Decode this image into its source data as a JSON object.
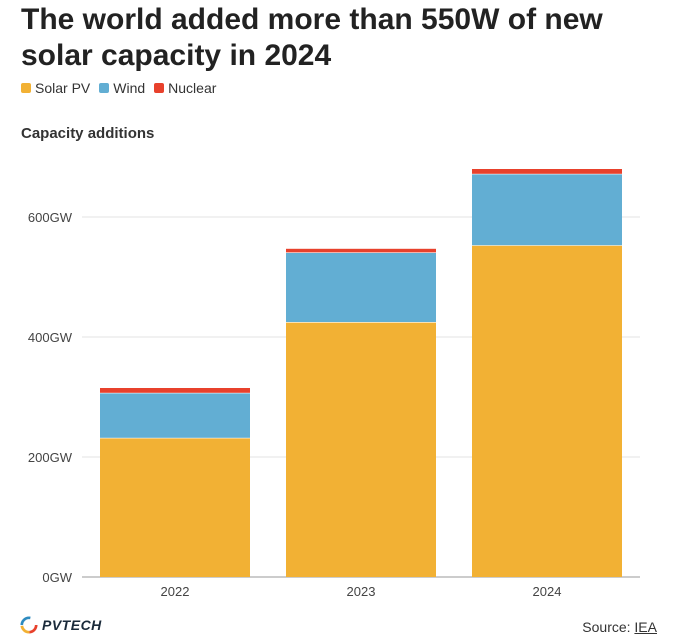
{
  "title": "The world added more than 550W of new solar capacity in 2024",
  "legend": [
    {
      "label": "Solar PV",
      "color": "#F2B134"
    },
    {
      "label": "Wind",
      "color": "#62AED3"
    },
    {
      "label": "Nuclear",
      "color": "#E8412C"
    }
  ],
  "subtitle": "Capacity additions",
  "footer": {
    "logo_text": "PVTECH",
    "source_prefix": "Source: ",
    "source_link": "IEA"
  },
  "chart_data": {
    "type": "bar",
    "stacked": true,
    "categories": [
      "2022",
      "2023",
      "2024"
    ],
    "series": [
      {
        "name": "Solar PV",
        "values": [
          232,
          425,
          553
        ],
        "color": "#F2B134"
      },
      {
        "name": "Wind",
        "values": [
          75,
          116,
          119
        ],
        "color": "#62AED3"
      },
      {
        "name": "Nuclear",
        "values": [
          8,
          6,
          8
        ],
        "color": "#E8412C"
      }
    ],
    "ylim": [
      0,
      700
    ],
    "yticks": [
      0,
      200,
      400,
      600
    ],
    "ytick_labels": [
      "0GW",
      "200GW",
      "400GW",
      "600GW"
    ],
    "grid": true,
    "legend_position": "top-left"
  }
}
